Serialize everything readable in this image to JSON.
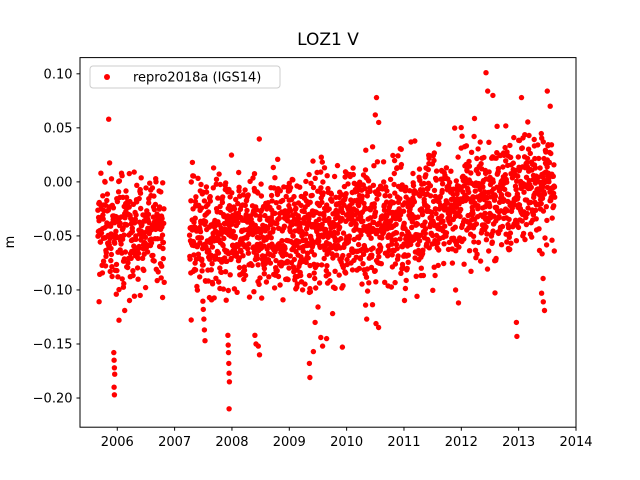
{
  "figure": {
    "title": "LOZ1 V",
    "ylabel": "m",
    "background_color": "#ffffff",
    "spine_color": "#000000"
  },
  "legend": {
    "position": "upper left",
    "border_color": "#cccccc",
    "background_color": "#ffffff",
    "entries": [
      {
        "label": "repro2018a (IGS14)",
        "marker": "dot",
        "marker_color": "#ff0000"
      }
    ]
  },
  "chart_data": {
    "type": "scatter",
    "title": "LOZ1 V",
    "xlabel": "",
    "ylabel": "m",
    "grid": false,
    "legend_position": "upper left",
    "xlim": [
      2005.35,
      2014.0
    ],
    "ylim": [
      -0.227,
      0.115
    ],
    "x_ticks": [
      2006,
      2007,
      2008,
      2009,
      2010,
      2011,
      2012,
      2013,
      2014
    ],
    "y_ticks": [
      0.1,
      0.05,
      0.0,
      -0.05,
      -0.1,
      -0.15,
      -0.2
    ],
    "series": [
      {
        "name": "repro2018a (IGS14)",
        "color": "#ff0000",
        "marker": "circle",
        "marker_radius_px": 2.7,
        "description": "Daily GNSS vertical (V) position residuals in metres for station LOZ1, ~2005.7 to ~2013.6, dense cloud centred near -0.05 m rising to ~0.0 m by 2013, with a data gap late 2006 to early 2007 and sporadic negative excursions to -0.21 m.",
        "generation": {
          "seed": 42,
          "y_clamp": [
            -0.205,
            0.103
          ],
          "cloud_segments": [
            {
              "x_start": 2005.66,
              "x_end": 2006.82,
              "n": 300,
              "mean_start": -0.046,
              "mean_end": -0.04,
              "std": 0.026,
              "tail_prob": 0.045,
              "tail_scale": 0.045
            },
            {
              "x_start": 2007.26,
              "x_end": 2009.0,
              "n": 520,
              "mean_start": -0.052,
              "mean_end": -0.047,
              "std": 0.026,
              "tail_prob": 0.05,
              "tail_scale": 0.05
            },
            {
              "x_start": 2009.0,
              "x_end": 2011.4,
              "n": 760,
              "mean_start": -0.047,
              "mean_end": -0.03,
              "std": 0.027,
              "tail_prob": 0.05,
              "tail_scale": 0.05
            },
            {
              "x_start": 2011.4,
              "x_end": 2013.63,
              "n": 660,
              "mean_start": -0.024,
              "mean_end": -0.003,
              "std": 0.026,
              "tail_prob": 0.04,
              "tail_scale": 0.05
            }
          ],
          "outliers": [
            [
              2005.85,
              0.058
            ],
            [
              2005.94,
              -0.158
            ],
            [
              2005.945,
              -0.165
            ],
            [
              2005.95,
              -0.172
            ],
            [
              2005.955,
              -0.178
            ],
            [
              2005.945,
              -0.19
            ],
            [
              2005.95,
              -0.197
            ],
            [
              2006.03,
              -0.128
            ],
            [
              2006.13,
              -0.119
            ],
            [
              2006.4,
              -0.105
            ],
            [
              2006.79,
              -0.107
            ],
            [
              2007.31,
              0.018
            ],
            [
              2007.5,
              -0.118
            ],
            [
              2007.51,
              -0.127
            ],
            [
              2007.52,
              -0.137
            ],
            [
              2007.53,
              -0.147
            ],
            [
              2007.93,
              -0.142
            ],
            [
              2007.935,
              -0.151
            ],
            [
              2007.94,
              -0.158
            ],
            [
              2007.945,
              -0.168
            ],
            [
              2007.95,
              -0.177
            ],
            [
              2007.955,
              -0.185
            ],
            [
              2007.95,
              -0.21
            ],
            [
              2008.4,
              -0.142
            ],
            [
              2008.42,
              -0.15
            ],
            [
              2008.46,
              -0.152
            ],
            [
              2008.48,
              -0.16
            ],
            [
              2009.35,
              -0.168
            ],
            [
              2009.36,
              -0.181
            ],
            [
              2009.42,
              -0.157
            ],
            [
              2009.45,
              -0.13
            ],
            [
              2009.55,
              -0.144
            ],
            [
              2009.58,
              -0.152
            ],
            [
              2009.65,
              -0.145
            ],
            [
              2010.33,
              -0.114
            ],
            [
              2010.35,
              -0.127
            ],
            [
              2010.5,
              0.062
            ],
            [
              2010.52,
              0.078
            ],
            [
              2010.56,
              0.055
            ],
            [
              2011.9,
              -0.1
            ],
            [
              2011.95,
              -0.112
            ],
            [
              2012.43,
              0.101
            ],
            [
              2012.46,
              0.084
            ],
            [
              2012.55,
              0.08
            ],
            [
              2012.96,
              -0.13
            ],
            [
              2012.97,
              -0.143
            ],
            [
              2013.05,
              0.078
            ],
            [
              2013.4,
              -0.103
            ],
            [
              2013.43,
              -0.111
            ],
            [
              2013.45,
              -0.119
            ],
            [
              2013.5,
              0.084
            ],
            [
              2013.55,
              0.07
            ]
          ]
        }
      }
    ]
  }
}
